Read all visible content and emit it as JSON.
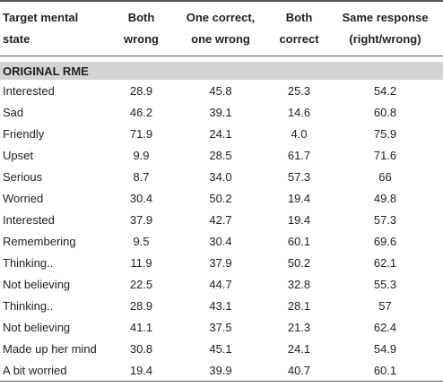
{
  "table": {
    "header": [
      [
        "Target mental",
        "state"
      ],
      [
        "Both",
        "wrong"
      ],
      [
        "One correct,",
        "one wrong"
      ],
      [
        "Both",
        "correct"
      ],
      [
        "Same response",
        "(right/wrong)"
      ]
    ],
    "section": "ORIGINAL RME",
    "rows": [
      [
        "Interested",
        "28.9",
        "45.8",
        "25.3",
        "54.2"
      ],
      [
        "Sad",
        "46.2",
        "39.1",
        "14.6",
        "60.8"
      ],
      [
        "Friendly",
        "71.9",
        "24.1",
        "4.0",
        "75.9"
      ],
      [
        "Upset",
        "9.9",
        "28.5",
        "61.7",
        "71.6"
      ],
      [
        "Serious",
        "8.7",
        "34.0",
        "57.3",
        "66"
      ],
      [
        "Worried",
        "30.4",
        "50.2",
        "19.4",
        "49.8"
      ],
      [
        "Interested",
        "37.9",
        "42.7",
        "19.4",
        "57.3"
      ],
      [
        "Remembering",
        "9.5",
        "30.4",
        "60.1",
        "69.6"
      ],
      [
        "Thinking..",
        "11.9",
        "37.9",
        "50.2",
        "62.1"
      ],
      [
        "Not believing",
        "22.5",
        "44.7",
        "32.8",
        "55.3"
      ],
      [
        "Thinking..",
        "28.9",
        "43.1",
        "28.1",
        "57"
      ],
      [
        "Not believing",
        "41.1",
        "37.5",
        "21.3",
        "62.4"
      ],
      [
        "Made up her mind",
        "30.8",
        "45.1",
        "24.1",
        "54.9"
      ],
      [
        "A bit worried",
        "19.4",
        "39.9",
        "40.7",
        "60.1"
      ]
    ]
  }
}
